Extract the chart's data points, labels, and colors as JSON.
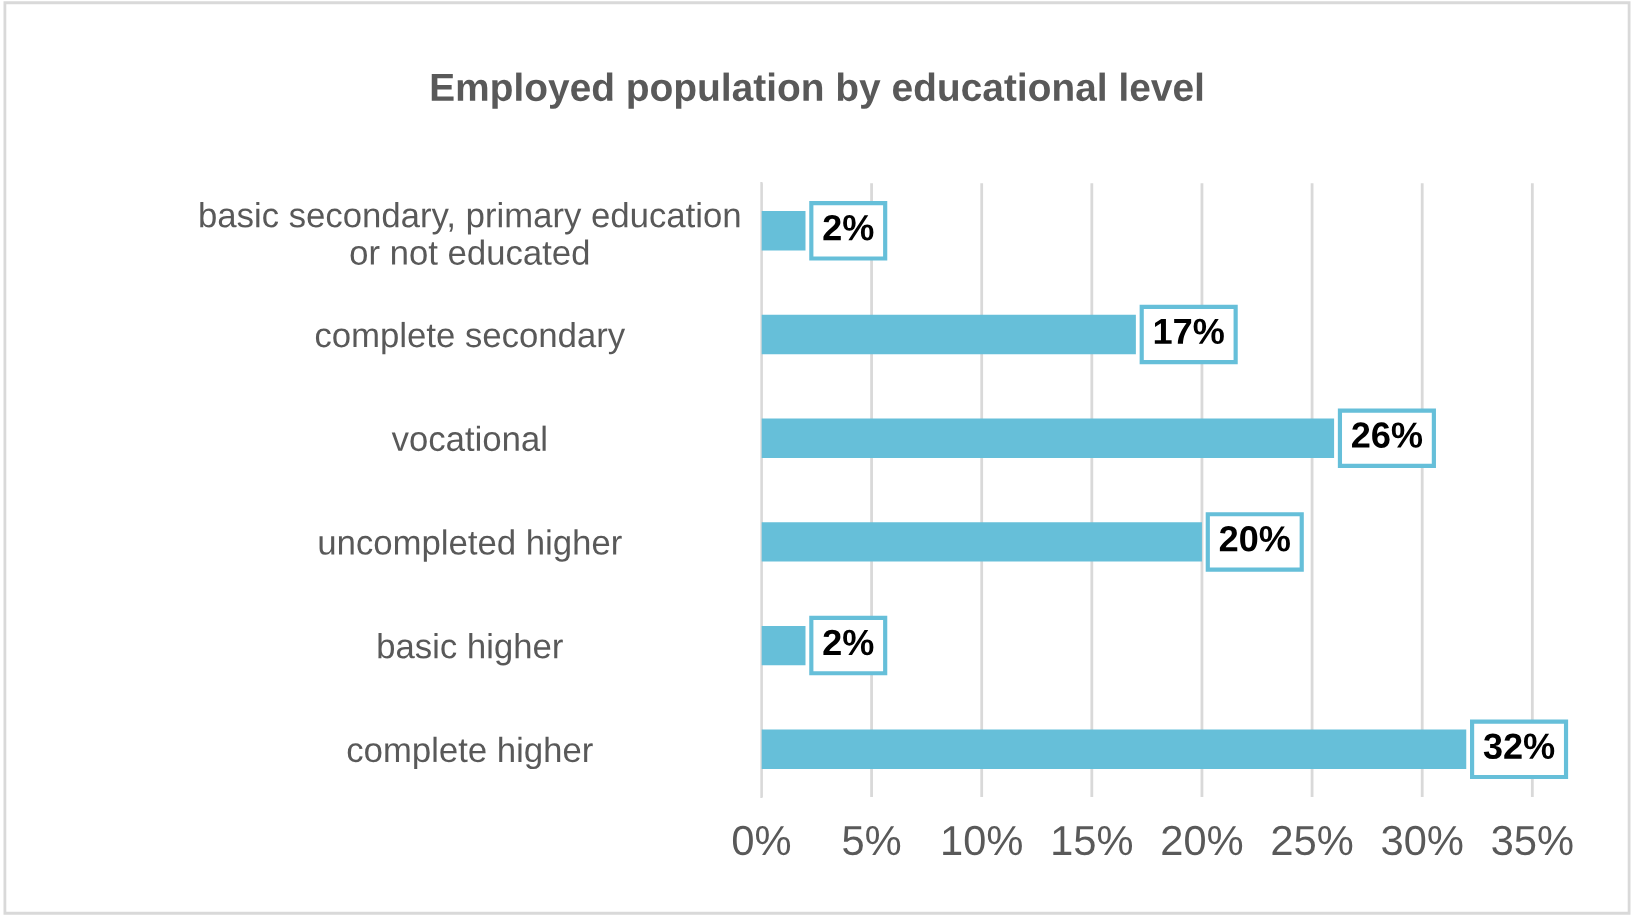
{
  "chart_data": {
    "type": "bar",
    "orientation": "horizontal",
    "title": "Employed population by educational level",
    "categories": [
      "basic secondary, primary education\nor not educated",
      "complete secondary",
      "vocational",
      "uncompleted higher",
      "basic higher",
      "complete higher"
    ],
    "values": [
      2,
      17,
      26,
      20,
      2,
      32
    ],
    "value_labels": [
      "2%",
      "17%",
      "26%",
      "20%",
      "2%",
      "32%"
    ],
    "color": "#66bfd9",
    "xlim": [
      0,
      36.5
    ],
    "xticks": [
      {
        "value": 0,
        "label": "0%"
      },
      {
        "value": 5,
        "label": "5%"
      },
      {
        "value": 10,
        "label": "10%"
      },
      {
        "value": 15,
        "label": "15%"
      },
      {
        "value": 20,
        "label": "20%"
      },
      {
        "value": 25,
        "label": "25%"
      },
      {
        "value": 30,
        "label": "30%"
      },
      {
        "value": 35,
        "label": "35%"
      }
    ],
    "grid": "x"
  }
}
